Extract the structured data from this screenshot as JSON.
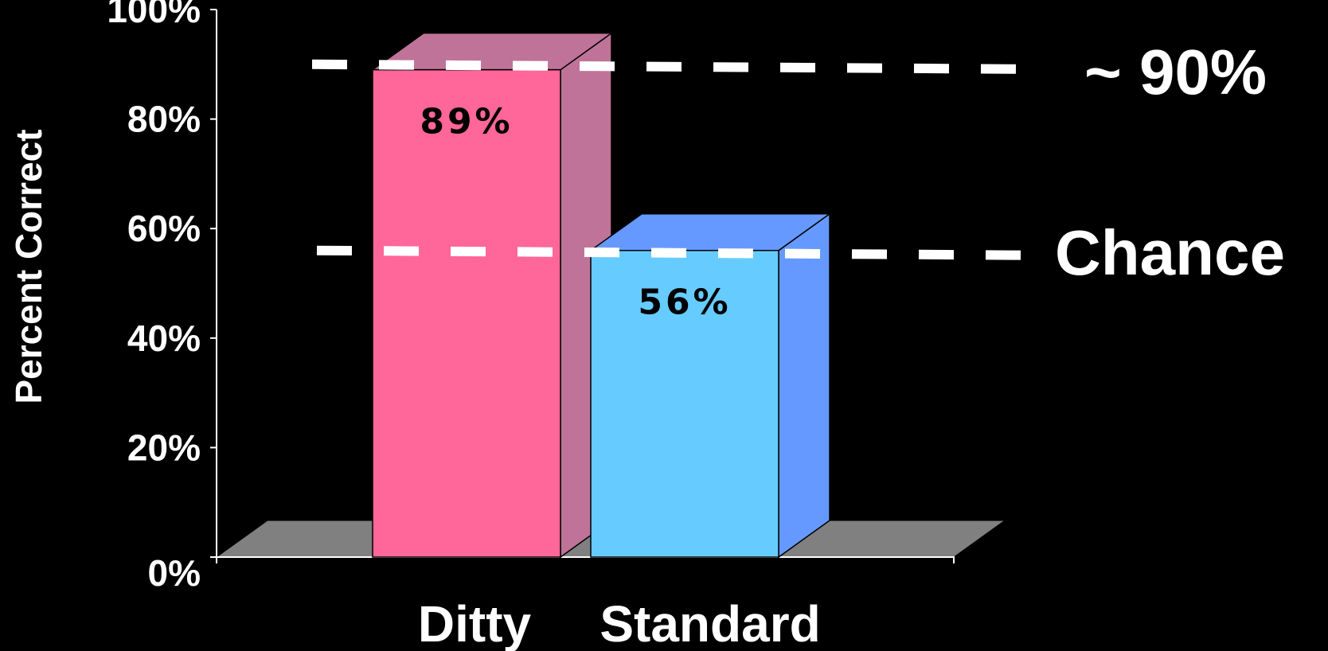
{
  "chart_data": {
    "type": "bar",
    "title": "",
    "xlabel": "",
    "ylabel": "Percent Correct",
    "ylim": [
      0,
      100
    ],
    "yticks": [
      "0%",
      "20%",
      "40%",
      "60%",
      "80%",
      "100%"
    ],
    "categories": [
      "Ditty",
      "Standard"
    ],
    "values": [
      89,
      56
    ],
    "data_labels": [
      "89%",
      "56%"
    ],
    "colors": {
      "Ditty": {
        "front": "#ff6699",
        "side": "#c07399",
        "top": "#c07399"
      },
      "Standard": {
        "front": "#66ccff",
        "side": "#6699ff",
        "top": "#6699ff"
      },
      "floor": "#808080"
    },
    "reference_lines": [
      {
        "label": "~ 90%",
        "value": 90
      },
      {
        "label": "Chance",
        "value": 56
      }
    ],
    "style": "3d-column",
    "grid": false,
    "legend": "none"
  }
}
